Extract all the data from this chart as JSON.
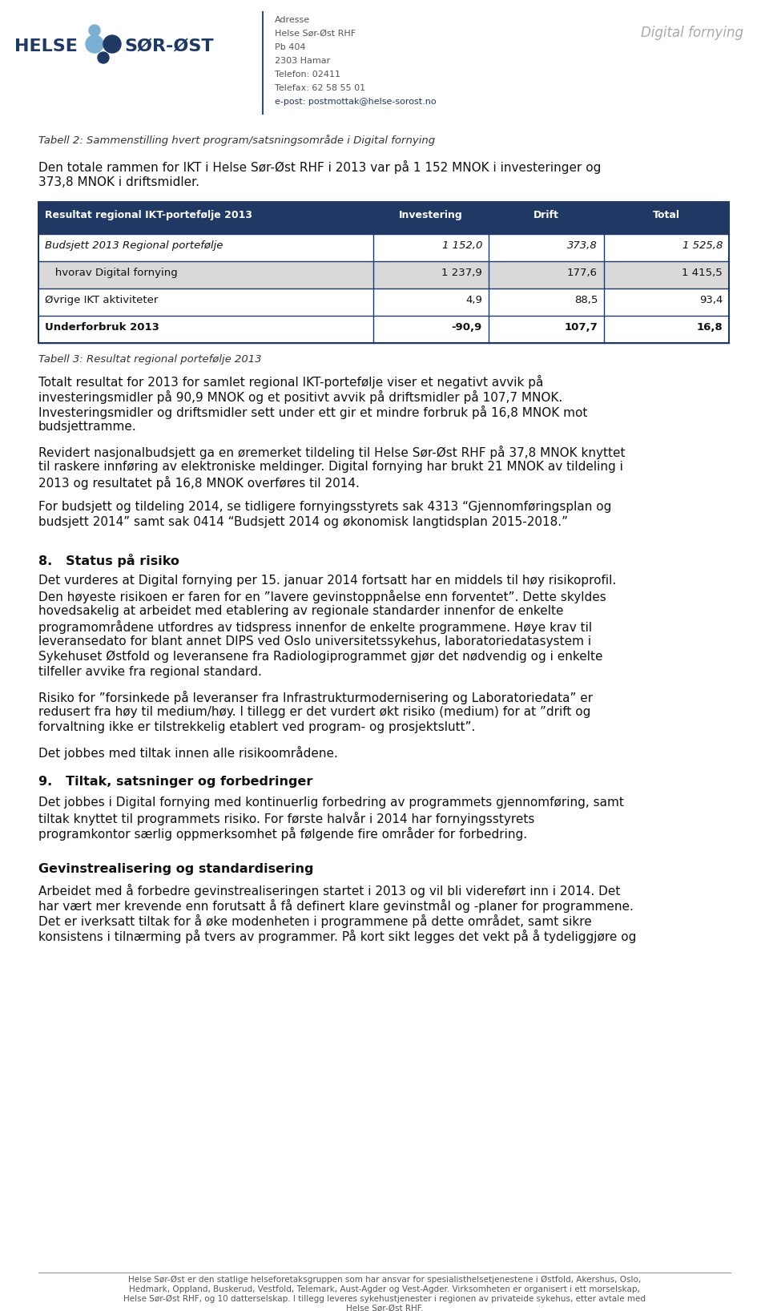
{
  "page_bg": "#ffffff",
  "header": {
    "address_lines": [
      "Adresse",
      "Helse Sør-Øst RHF",
      "Pb 404",
      "2303 Hamar",
      "Telefon: 02411",
      "Telefax: 62 58 55 01",
      "e-post: postmottak@helse-sorost.no"
    ],
    "right_text": "Digital fornying",
    "divider_color": "#2c4a8c"
  },
  "section_title_italic": "Tabell 2: Sammenstilling hvert program/satsningsområde i Digital fornying",
  "intro_paragraph": "Den totale rammen for IKT i Helse Sør-Øst RHF i 2013 var på 1 152 MNOK i investeringer og\n373,8 MNOK i driftsmidler.",
  "table": {
    "header_bg": "#1f3864",
    "header_fg": "#ffffff",
    "col1_header": "Resultat regional IKT-portefølje 2013",
    "col2_header": "Investering",
    "col3_header": "Drift",
    "col4_header": "Total",
    "rows": [
      {
        "label": "Budsjett 2013 Regional portefølje",
        "italic": true,
        "bold": false,
        "bg": "#ffffff",
        "investering": "1 152,0",
        "drift": "373,8",
        "total": "1 525,8"
      },
      {
        "label": "   hvorav Digital fornying",
        "italic": false,
        "bold": false,
        "bg": "#d9d9d9",
        "investering": "1 237,9",
        "drift": "177,6",
        "total": "1 415,5"
      },
      {
        "label": "Øvrige IKT aktiviteter",
        "italic": false,
        "bold": false,
        "bg": "#ffffff",
        "investering": "4,9",
        "drift": "88,5",
        "total": "93,4"
      },
      {
        "label": "Underforbruk 2013",
        "italic": false,
        "bold": true,
        "bg": "#ffffff",
        "investering": "-90,9",
        "drift": "107,7",
        "total": "16,8"
      }
    ],
    "border_color": "#1f3864"
  },
  "tabell3_caption": "Tabell 3: Resultat regional portefølje 2013",
  "body_paragraphs": [
    "Totalt resultat for 2013 for samlet regional IKT-portefølje viser et negativt avvik på\ninvesteringsmidler på 90,9 MNOK og et positivt avvik på driftsmidler på 107,7 MNOK.\nInvesteringsmidler og driftsmidler sett under ett gir et mindre forbruk på 16,8 MNOK mot\nbudsjettramme.",
    "Revidert nasjonalbudsjett ga en øremerket tildeling til Helse Sør-Øst RHF på 37,8 MNOK knyttet\ntil raskere innføring av elektroniske meldinger. Digital fornying har brukt 21 MNOK av tildeling i\n2013 og resultatet på 16,8 MNOK overføres til 2014.",
    "For budsjett og tildeling 2014, se tidligere fornyingsstyrets sak 4313 “Gjennomføringsplan og\nbudsjett 2014” samt sak 0414 “Budsjett 2014 og økonomisk langtidsplan 2015-2018.”"
  ],
  "section8_title": "8.   Status på risiko",
  "section8_paragraphs": [
    "Det vurderes at Digital fornying per 15. januar 2014 fortsatt har en middels til høy risikoprofil.\nDen høyeste risikoen er faren for en ”lavere gevinstoppnåelse enn forventet”. Dette skyldes\nhovedsakelig at arbeidet med etablering av regionale standarder innenfor de enkelte\nprogramområdene utfordres av tidspress innenfor de enkelte programmene. Høye krav til\nleveransedato for blant annet DIPS ved Oslo universitetssykehus, laboratoriedatasystem i\nSykehuset Østfold og leveransene fra Radiologiprogrammet gjør det nødvendig og i enkelte\ntilfeller avvike fra regional standard.",
    "Risiko for ”forsinkede på leveranser fra Infrastrukturmodernisering og Laboratoriedata” er\nredusert fra høy til medium/høy. I tillegg er det vurdert økt risiko (medium) for at ”drift og\nforvaltning ikke er tilstrekkelig etablert ved program- og prosjektslutt”.",
    "Det jobbes med tiltak innen alle risikoområdene."
  ],
  "section9_title": "9.   Tiltak, satsninger og forbedringer",
  "section9_paragraphs": [
    "Det jobbes i Digital fornying med kontinuerlig forbedring av programmets gjennomføring, samt\ntiltak knyttet til programmets risiko. For første halvår i 2014 har fornyingsstyrets\nprogramkontor særlig oppmerksomhet på følgende fire områder for forbedring."
  ],
  "section_gevinst_title": "Gevinstrealisering og standardisering",
  "section_gevinst_paragraphs": [
    "Arbeidet med å forbedre gevinstrealiseringen startet i 2013 og vil bli videreført inn i 2014. Det\nhar vært mer krevende enn forutsatt å få definert klare gevinstmål og -planer for programmene.\nDet er iverksatt tiltak for å øke modenheten i programmene på dette området, samt sikre\nkonsistens i tilnærming på tvers av programmer. På kort sikt legges det vekt på å tydeliggjøre og"
  ],
  "footer_text": "Helse Sør-Øst er den statlige helseforetaksgruppen som har ansvar for spesialisthelsetjenestene i Østfold, Akershus, Oslo,\nHedmark, Oppland, Buskerud, Vestfold, Telemark, Aust-Agder og Vest-Agder. Virksomheten er organisert i ett morselskap,\nHelse Sør-Øst RHF, og 10 datterselskap. I tillegg leveres sykehustjenester i regionen av privateide sykehus, etter avtale med\nHelse Sør-Øst RHF."
}
